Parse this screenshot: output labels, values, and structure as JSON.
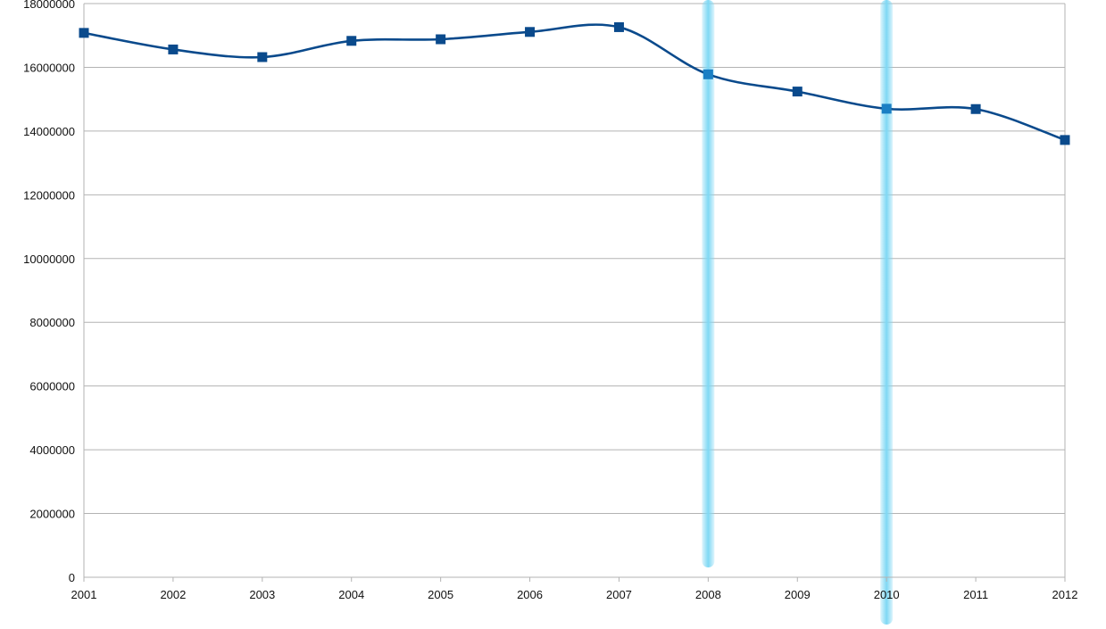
{
  "chart_data": {
    "type": "line",
    "categories": [
      "2001",
      "2002",
      "2003",
      "2004",
      "2005",
      "2006",
      "2007",
      "2008",
      "2009",
      "2010",
      "2011",
      "2012"
    ],
    "series": [
      {
        "values": [
          17080000,
          16560000,
          16320000,
          16830000,
          16880000,
          17110000,
          17260000,
          15780000,
          15240000,
          14700000,
          14690000,
          13720000
        ]
      }
    ],
    "ylim": [
      0,
      18000000
    ],
    "yticks": [
      0,
      2000000,
      4000000,
      6000000,
      8000000,
      10000000,
      12000000,
      14000000,
      16000000,
      18000000
    ],
    "ytick_labels": [
      "0",
      "2000000",
      "4000000",
      "6000000",
      "8000000",
      "10000000",
      "12000000",
      "14000000",
      "16000000",
      "18000000"
    ],
    "highlighted_categories": [
      "2008",
      "2010"
    ],
    "grid": true,
    "smooth": true,
    "colors": {
      "line": "#0a4a8c",
      "marker": "#0a4a8c",
      "highlight_marker": "#1a7fc4",
      "highlight_band": "#7fd8f4",
      "grid": "#b3b3b3"
    }
  }
}
